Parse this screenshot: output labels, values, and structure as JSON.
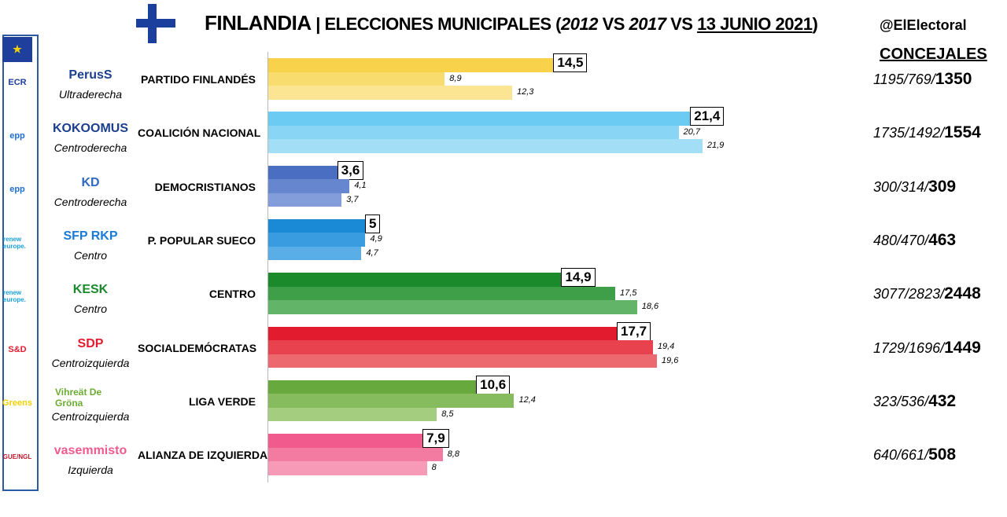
{
  "header": {
    "country": "FINLANDIA",
    "separator": " | ",
    "election": "ELECCIONES MUNICIPALES",
    "y1": "2012",
    "y2": "2017",
    "vs": " VS ",
    "date": "13 JUNIO 2021",
    "open": " (",
    "close": ")",
    "handle": "@ElElectoral",
    "seats_header": "CONCEJALES"
  },
  "groups": [
    "ECR",
    "epp",
    "epp",
    "renew europe.",
    "renew europe.",
    "S&D",
    "Greens",
    "GUE/NGL"
  ],
  "chart_data": {
    "type": "bar",
    "orientation": "horizontal",
    "title": "FINLANDIA | ELECCIONES MUNICIPALES (2012 VS 2017 VS 13 JUNIO 2021)",
    "series_order": [
      "2021",
      "2017",
      "2012"
    ],
    "xlim": [
      0,
      26
    ],
    "grid": false,
    "categories": [
      "PARTIDO FINLANDÉS",
      "COALICIÓN NACIONAL",
      "DEMOCRISTIANOS",
      "P. POPULAR SUECO",
      "CENTRO",
      "SOCIALDEMÓCRATAS",
      "LIGA VERDE",
      "ALIANZA DE IZQUIERDA"
    ],
    "parties": [
      {
        "name": "PARTIDO FINLANDÉS",
        "logo_text": "PerusS",
        "ideology": "Ultraderecha",
        "v2021": 14.5,
        "v2017": 8.9,
        "v2012": 12.3,
        "l2021": "14,5",
        "l2017": "8,9",
        "l2012": "12,3",
        "s2012": "1195",
        "s2017": "769",
        "s2021": "1350",
        "colors": [
          "#f7d24a",
          "#f9dc6e",
          "#fbe592"
        ],
        "logo_color": "#1b3f8c"
      },
      {
        "name": "COALICIÓN NACIONAL",
        "logo_text": "KOKOOMUS",
        "ideology": "Centroderecha",
        "v2021": 21.4,
        "v2017": 20.7,
        "v2012": 21.9,
        "l2021": "21,4",
        "l2017": "20,7",
        "l2012": "21,9",
        "s2012": "1735",
        "s2017": "1492",
        "s2021": "1554",
        "colors": [
          "#6ccbf2",
          "#88d5f5",
          "#a3def7"
        ],
        "logo_color": "#1b3f8c"
      },
      {
        "name": "DEMOCRISTIANOS",
        "logo_text": "KD",
        "ideology": "Centroderecha",
        "v2021": 3.6,
        "v2017": 4.1,
        "v2012": 3.7,
        "l2021": "3,6",
        "l2017": "4,1",
        "l2012": "3,7",
        "s2012": "300",
        "s2017": "314",
        "s2021": "309",
        "colors": [
          "#4a6ec2",
          "#6686cf",
          "#839ddb"
        ],
        "logo_color": "#2f69c4"
      },
      {
        "name": "P. POPULAR SUECO",
        "logo_text": "SFP RKP",
        "ideology": "Centro",
        "v2021": 5,
        "v2017": 4.9,
        "v2012": 4.7,
        "l2021": "5",
        "l2017": "4,9",
        "l2012": "4,7",
        "s2012": "480",
        "s2017": "470",
        "s2021": "463",
        "colors": [
          "#1a8ad6",
          "#3a9ce0",
          "#5aaee7"
        ],
        "logo_color": "#1a7ad6"
      },
      {
        "name": "CENTRO",
        "logo_text": "KESK",
        "ideology": "Centro",
        "v2021": 14.9,
        "v2017": 17.5,
        "v2012": 18.6,
        "l2021": "14,9",
        "l2017": "17,5",
        "l2012": "18,6",
        "s2012": "3077",
        "s2017": "2823",
        "s2021": "2448",
        "colors": [
          "#1b8a2a",
          "#3f9f49",
          "#62b468"
        ],
        "logo_color": "#1b8a2a"
      },
      {
        "name": "SOCIALDEMÓCRATAS",
        "logo_text": "SDP",
        "ideology": "Centroizquierda",
        "v2021": 17.7,
        "v2017": 19.4,
        "v2012": 19.6,
        "l2021": "17,7",
        "l2017": "19,4",
        "l2012": "19,6",
        "s2012": "1729",
        "s2017": "1696",
        "s2021": "1449",
        "colors": [
          "#e31b2f",
          "#e8424f",
          "#ed6970"
        ],
        "logo_color": "#e31b2f"
      },
      {
        "name": "LIGA VERDE",
        "logo_text": "Vihreät De Gröna",
        "ideology": "Centroizquierda",
        "v2021": 10.6,
        "v2017": 12.4,
        "v2012": 8.5,
        "l2021": "10,6",
        "l2017": "12,4",
        "l2012": "8,5",
        "s2012": "323",
        "s2017": "536",
        "s2021": "432",
        "colors": [
          "#67a93c",
          "#86bb5e",
          "#a5cd80"
        ],
        "logo_color": "#6aad32"
      },
      {
        "name": "ALIANZA DE IZQUIERDA",
        "logo_text": "vasemmisto",
        "ideology": "Izquierda",
        "v2021": 7.9,
        "v2017": 8.8,
        "v2012": 8,
        "l2021": "7,9",
        "l2017": "8,8",
        "l2012": "8",
        "s2012": "640",
        "s2017": "661",
        "s2021": "508",
        "colors": [
          "#f05a8c",
          "#f37aa1",
          "#f69ab7"
        ],
        "logo_color": "#f05a8c"
      }
    ]
  }
}
